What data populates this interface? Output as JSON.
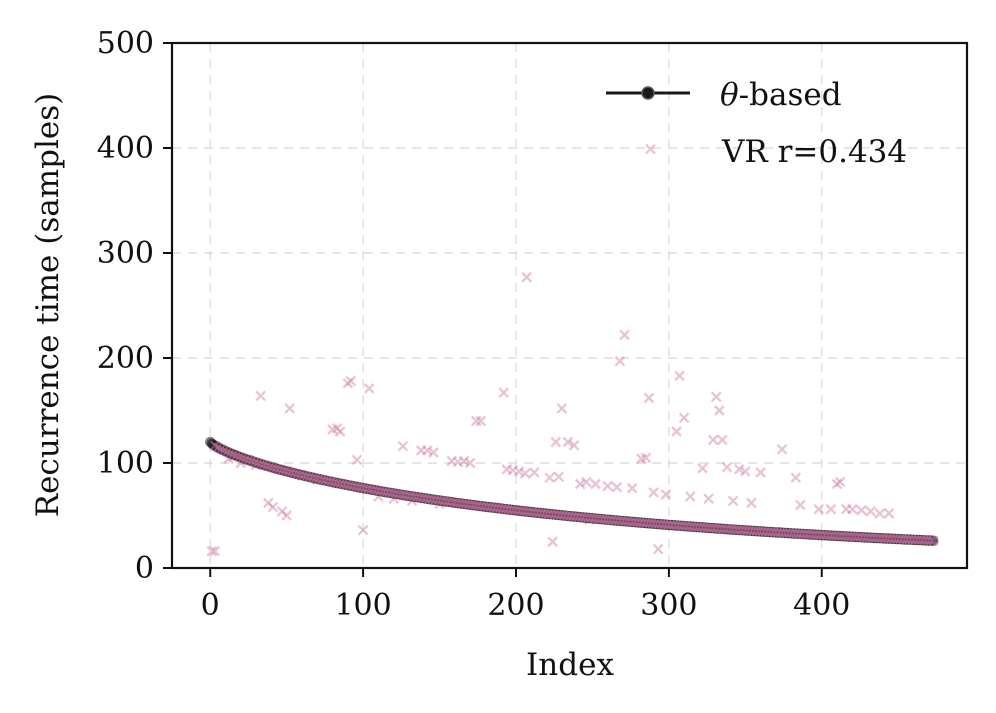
{
  "chart_data": {
    "type": "scatter",
    "title": "",
    "xlabel": "Index",
    "ylabel": "Recurrence time (samples)",
    "xlim": [
      -25,
      495
    ],
    "ylim": [
      0,
      500
    ],
    "x_ticks": [
      0,
      100,
      200,
      300,
      400
    ],
    "x_tick_labels": [
      "0",
      "100",
      "200",
      "300",
      "400"
    ],
    "y_ticks": [
      0,
      100,
      200,
      300,
      400,
      500
    ],
    "y_tick_labels": [
      "0",
      "100",
      "200",
      "300",
      "400",
      "500"
    ],
    "grid": true,
    "legend_position": "top-right",
    "series": [
      {
        "name": "θ-based",
        "legend_label": "-based",
        "legend_symbol": "θ",
        "kind": "line-markers",
        "color": "#1a1a1a",
        "curve": {
          "start_x": 0,
          "end_x": 473,
          "start_y": 120,
          "end_y": 26,
          "point_count": 474
        }
      },
      {
        "name": "VR r=0.434",
        "legend_label": "VR r=0.434",
        "kind": "x-markers",
        "color": "#cc79a7",
        "points": [
          [
            1,
            16
          ],
          [
            3,
            16
          ],
          [
            12,
            104
          ],
          [
            15,
            106
          ],
          [
            20,
            100
          ],
          [
            25,
            103
          ],
          [
            30,
            98
          ],
          [
            33,
            164
          ],
          [
            38,
            62
          ],
          [
            41,
            58
          ],
          [
            47,
            54
          ],
          [
            50,
            50
          ],
          [
            52,
            152
          ],
          [
            60,
            88
          ],
          [
            70,
            84
          ],
          [
            80,
            132
          ],
          [
            83,
            133
          ],
          [
            85,
            130
          ],
          [
            90,
            176
          ],
          [
            92,
            178
          ],
          [
            96,
            103
          ],
          [
            100,
            36
          ],
          [
            104,
            171
          ],
          [
            110,
            68
          ],
          [
            120,
            66
          ],
          [
            126,
            116
          ],
          [
            132,
            64
          ],
          [
            138,
            112
          ],
          [
            142,
            112
          ],
          [
            146,
            110
          ],
          [
            150,
            61
          ],
          [
            158,
            102
          ],
          [
            162,
            101
          ],
          [
            166,
            102
          ],
          [
            170,
            100
          ],
          [
            174,
            140
          ],
          [
            177,
            140
          ],
          [
            186,
            58
          ],
          [
            192,
            167
          ],
          [
            194,
            94
          ],
          [
            198,
            93
          ],
          [
            202,
            92
          ],
          [
            206,
            90
          ],
          [
            207,
            277
          ],
          [
            212,
            91
          ],
          [
            218,
            52
          ],
          [
            222,
            86
          ],
          [
            224,
            25
          ],
          [
            226,
            120
          ],
          [
            228,
            87
          ],
          [
            230,
            152
          ],
          [
            234,
            120
          ],
          [
            238,
            117
          ],
          [
            242,
            80
          ],
          [
            246,
            82
          ],
          [
            248,
            46
          ],
          [
            252,
            80
          ],
          [
            260,
            78
          ],
          [
            266,
            77
          ],
          [
            268,
            197
          ],
          [
            271,
            222
          ],
          [
            276,
            76
          ],
          [
            282,
            104
          ],
          [
            285,
            105
          ],
          [
            287,
            162
          ],
          [
            288,
            399
          ],
          [
            290,
            72
          ],
          [
            293,
            18
          ],
          [
            298,
            70
          ],
          [
            305,
            130
          ],
          [
            307,
            183
          ],
          [
            310,
            143
          ],
          [
            314,
            68
          ],
          [
            322,
            95
          ],
          [
            326,
            66
          ],
          [
            329,
            122
          ],
          [
            331,
            163
          ],
          [
            333,
            150
          ],
          [
            335,
            122
          ],
          [
            338,
            96
          ],
          [
            342,
            64
          ],
          [
            346,
            94
          ],
          [
            350,
            92
          ],
          [
            354,
            62
          ],
          [
            360,
            91
          ],
          [
            374,
            113
          ],
          [
            383,
            86
          ],
          [
            386,
            60
          ],
          [
            398,
            56
          ],
          [
            406,
            56
          ],
          [
            410,
            80
          ],
          [
            412,
            82
          ],
          [
            416,
            56
          ],
          [
            420,
            56
          ],
          [
            426,
            55
          ],
          [
            432,
            54
          ],
          [
            438,
            52
          ],
          [
            444,
            52
          ]
        ]
      }
    ]
  }
}
